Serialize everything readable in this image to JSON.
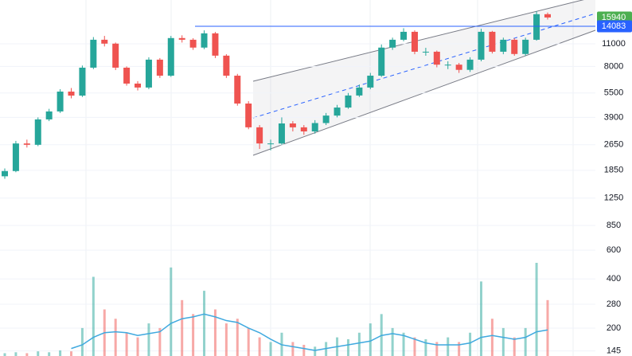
{
  "chart_data": {
    "type": "candlestick",
    "log_scale": true,
    "grid": true,
    "up_color": "#26a69a",
    "down_color": "#ef5350",
    "ylim": [
      135,
      20400
    ],
    "yticks": [
      11000,
      8000,
      5500,
      3900,
      2650,
      1850,
      1250,
      850,
      600,
      400,
      280,
      200,
      145
    ],
    "price_labels": [
      {
        "value": 15940,
        "color": "#4caf50"
      },
      {
        "value": 14083,
        "color": "#2962ff"
      }
    ],
    "candles": [
      {
        "open": 1700,
        "high": 1900,
        "low": 1640,
        "close": 1830
      },
      {
        "open": 1830,
        "high": 2800,
        "low": 1800,
        "close": 2700
      },
      {
        "open": 2700,
        "high": 2850,
        "low": 2550,
        "close": 2650
      },
      {
        "open": 2650,
        "high": 3900,
        "low": 2600,
        "close": 3790
      },
      {
        "open": 3790,
        "high": 4400,
        "low": 3700,
        "close": 4240
      },
      {
        "open": 4240,
        "high": 5800,
        "low": 4150,
        "close": 5610
      },
      {
        "open": 5610,
        "high": 5900,
        "low": 5100,
        "close": 5300
      },
      {
        "open": 5300,
        "high": 8100,
        "low": 5200,
        "close": 7860
      },
      {
        "open": 7860,
        "high": 12100,
        "low": 7700,
        "close": 11650
      },
      {
        "open": 11650,
        "high": 12300,
        "low": 10600,
        "close": 11030
      },
      {
        "open": 11030,
        "high": 11200,
        "low": 7600,
        "close": 7860
      },
      {
        "open": 7860,
        "high": 8000,
        "low": 6100,
        "close": 6280
      },
      {
        "open": 6280,
        "high": 6500,
        "low": 5700,
        "close": 5940
      },
      {
        "open": 5940,
        "high": 9100,
        "low": 5800,
        "close": 8800
      },
      {
        "open": 8800,
        "high": 9000,
        "low": 6800,
        "close": 7020
      },
      {
        "open": 7020,
        "high": 12300,
        "low": 6900,
        "close": 11930
      },
      {
        "open": 11930,
        "high": 12400,
        "low": 11200,
        "close": 11650
      },
      {
        "open": 11650,
        "high": 11900,
        "low": 10100,
        "close": 10430
      },
      {
        "open": 10430,
        "high": 13300,
        "low": 10200,
        "close": 12750
      },
      {
        "open": 12750,
        "high": 13000,
        "low": 9000,
        "close": 9310
      },
      {
        "open": 9310,
        "high": 9500,
        "low": 6800,
        "close": 7020
      },
      {
        "open": 7020,
        "high": 7200,
        "low": 4600,
        "close": 4740
      },
      {
        "open": 4740,
        "high": 4900,
        "low": 3300,
        "close": 3390
      },
      {
        "open": 3390,
        "high": 3500,
        "low": 2500,
        "close": 2700
      },
      {
        "open": 2700,
        "high": 2850,
        "low": 2450,
        "close": 2700
      },
      {
        "open": 2700,
        "high": 3900,
        "low": 2650,
        "close": 3580
      },
      {
        "open": 3580,
        "high": 3700,
        "low": 3200,
        "close": 3390
      },
      {
        "open": 3390,
        "high": 3500,
        "low": 3050,
        "close": 3200
      },
      {
        "open": 3200,
        "high": 3750,
        "low": 3100,
        "close": 3600
      },
      {
        "open": 3600,
        "high": 4150,
        "low": 3500,
        "close": 4000
      },
      {
        "open": 4000,
        "high": 4650,
        "low": 3900,
        "close": 4480
      },
      {
        "open": 4480,
        "high": 5500,
        "low": 4400,
        "close": 5310
      },
      {
        "open": 5310,
        "high": 6200,
        "low": 5200,
        "close": 5940
      },
      {
        "open": 5940,
        "high": 7300,
        "low": 5800,
        "close": 7020
      },
      {
        "open": 7020,
        "high": 10900,
        "low": 6900,
        "close": 10430
      },
      {
        "open": 10430,
        "high": 12000,
        "low": 10100,
        "close": 11650
      },
      {
        "open": 11650,
        "high": 13700,
        "low": 11400,
        "close": 13030
      },
      {
        "open": 13030,
        "high": 13300,
        "low": 9500,
        "close": 9840
      },
      {
        "open": 9840,
        "high": 10400,
        "low": 9300,
        "close": 9840
      },
      {
        "open": 9840,
        "high": 10000,
        "low": 7900,
        "close": 8200
      },
      {
        "open": 8200,
        "high": 8600,
        "low": 7700,
        "close": 8200
      },
      {
        "open": 8200,
        "high": 8400,
        "low": 7300,
        "close": 7620
      },
      {
        "open": 7620,
        "high": 9100,
        "low": 7400,
        "close": 8800
      },
      {
        "open": 8800,
        "high": 13600,
        "low": 8600,
        "close": 13030
      },
      {
        "open": 13030,
        "high": 13200,
        "low": 9600,
        "close": 9840
      },
      {
        "open": 9840,
        "high": 12000,
        "low": 9500,
        "close": 11650
      },
      {
        "open": 11650,
        "high": 11900,
        "low": 9300,
        "close": 9530
      },
      {
        "open": 9530,
        "high": 12000,
        "low": 9300,
        "close": 11650
      },
      {
        "open": 11650,
        "high": 17400,
        "low": 11500,
        "close": 16700
      },
      {
        "open": 16700,
        "high": 17100,
        "low": 15500,
        "close": 15940
      }
    ],
    "volume": {
      "y2lim": [
        0,
        100
      ],
      "ma_color": "#3fa9df",
      "values": [
        3,
        4,
        3,
        5,
        4,
        6,
        5,
        30,
        85,
        50,
        40,
        25,
        20,
        35,
        30,
        95,
        60,
        45,
        70,
        50,
        35,
        40,
        30,
        20,
        15,
        25,
        15,
        12,
        10,
        15,
        20,
        18,
        25,
        35,
        45,
        30,
        25,
        20,
        18,
        15,
        20,
        15,
        25,
        80,
        40,
        30,
        20,
        30,
        100,
        60
      ],
      "ma": [
        null,
        null,
        null,
        null,
        null,
        null,
        8,
        12,
        20,
        25,
        26,
        25,
        22,
        24,
        26,
        35,
        40,
        42,
        45,
        42,
        38,
        36,
        30,
        25,
        18,
        12,
        10,
        8,
        6,
        8,
        10,
        12,
        14,
        16,
        22,
        24,
        22,
        18,
        14,
        12,
        12,
        12,
        14,
        20,
        22,
        20,
        18,
        20,
        26,
        28
      ]
    }
  }
}
